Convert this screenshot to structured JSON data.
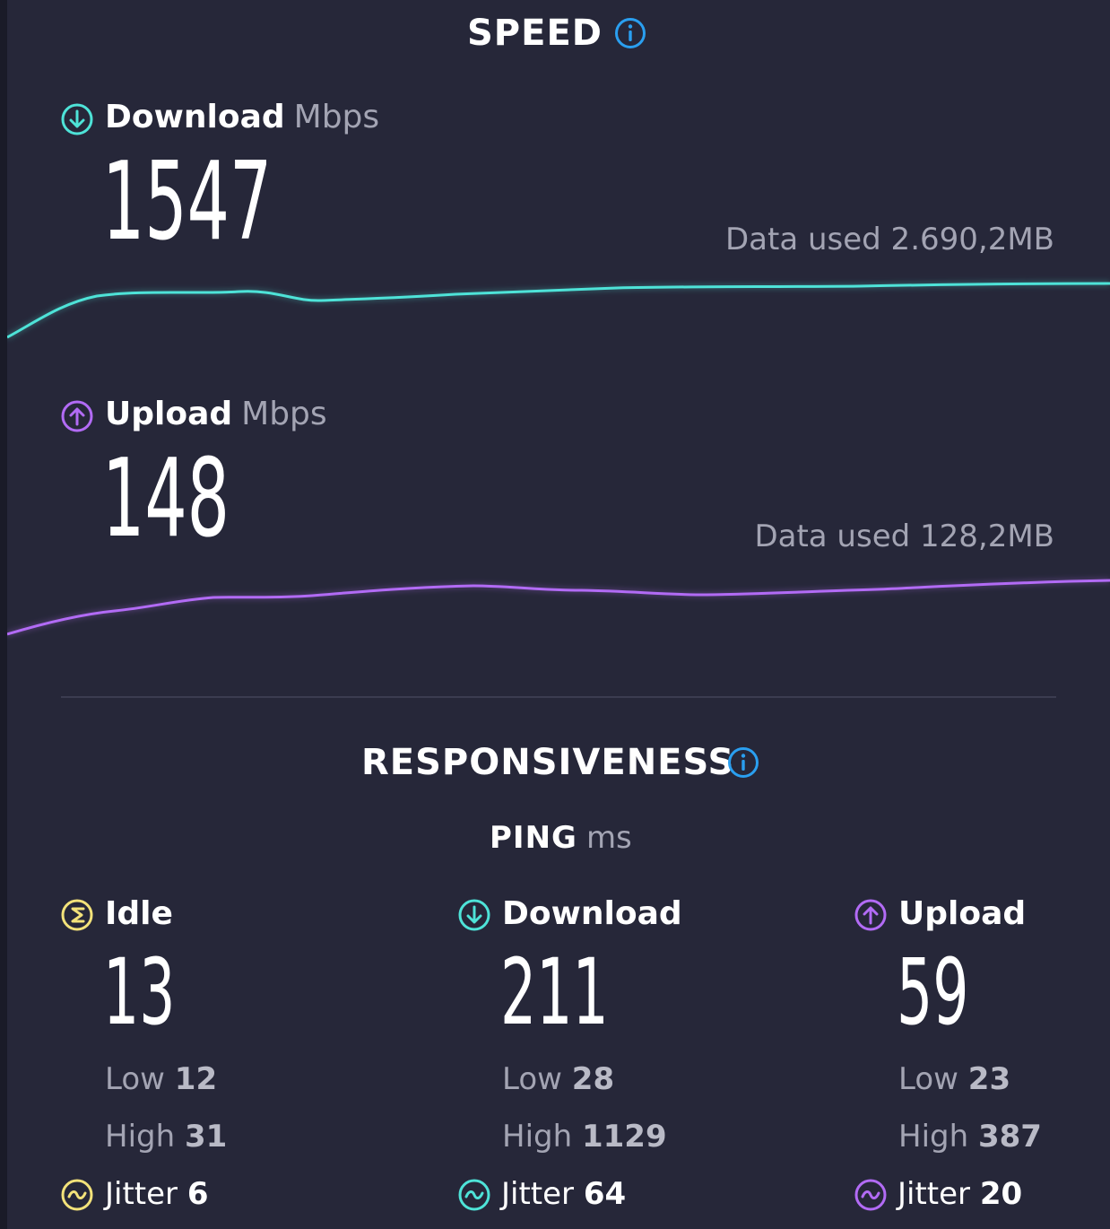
{
  "speed": {
    "title": "SPEED",
    "download": {
      "label": "Download",
      "unit": "Mbps",
      "value": "1547",
      "data_used": "Data used 2.690,2MB",
      "color": "#4ee3d8",
      "icon": "arrow-down-circle-icon"
    },
    "upload": {
      "label": "Upload",
      "unit": "Mbps",
      "value": "148",
      "data_used": "Data used 128,2MB",
      "color": "#b26bf5",
      "icon": "arrow-up-circle-icon"
    }
  },
  "responsiveness": {
    "title": "RESPONSIVENESS",
    "ping_label": "PING",
    "ping_unit": "ms",
    "columns": [
      {
        "label": "Idle",
        "value": "13",
        "low_label": "Low",
        "low": "12",
        "high_label": "High",
        "high": "31",
        "jitter_label": "Jitter",
        "jitter": "6",
        "color": "#f3e27a",
        "icon": "idle-circle-icon"
      },
      {
        "label": "Download",
        "value": "211",
        "low_label": "Low",
        "low": "28",
        "high_label": "High",
        "high": "1129",
        "jitter_label": "Jitter",
        "jitter": "64",
        "color": "#4ee3d8",
        "icon": "arrow-down-circle-icon"
      },
      {
        "label": "Upload",
        "value": "59",
        "low_label": "Low",
        "low": "23",
        "high_label": "High",
        "high": "387",
        "jitter_label": "Jitter",
        "jitter": "20",
        "color": "#b26bf5",
        "icon": "arrow-up-circle-icon"
      }
    ]
  },
  "info_icon_color": "#2a9ff0"
}
